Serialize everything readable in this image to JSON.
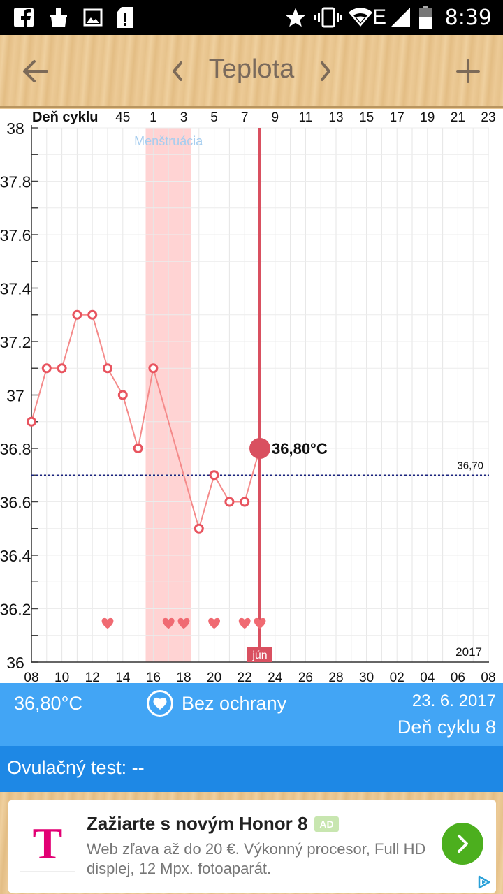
{
  "statusbar": {
    "time": "8:39",
    "icons": [
      "facebook-icon",
      "cleaner-icon",
      "gallery-icon",
      "sd-card-alert-icon",
      "star-icon",
      "vibrate-icon",
      "wifi-icon",
      "network-e-icon",
      "signal-icon",
      "battery-icon"
    ],
    "network_type": "E"
  },
  "header": {
    "title": "Teplota",
    "back_icon": "arrow-left-icon",
    "prev_icon": "chevron-left-icon",
    "next_icon": "chevron-right-icon",
    "add_icon": "plus-icon",
    "wood_color": "#e8c48d"
  },
  "chart_data": {
    "type": "line",
    "top_axis_label": "Deň cyklu",
    "cycle_day_ticks": [
      "45",
      "1",
      "3",
      "5",
      "7",
      "9",
      "11",
      "13",
      "15",
      "17",
      "19",
      "21",
      "23"
    ],
    "date_ticks": [
      "08",
      "10",
      "12",
      "14",
      "16",
      "18",
      "20",
      "22",
      "24",
      "26",
      "28",
      "30",
      "02",
      "04",
      "06",
      "08"
    ],
    "y_ticks": [
      "36",
      "36.2",
      "36.4",
      "36.6",
      "36.8",
      "37",
      "37.2",
      "37.4",
      "37.6",
      "37.8",
      "38"
    ],
    "ylim": [
      36,
      38
    ],
    "series": [
      {
        "x": [
          "08",
          "09",
          "10",
          "11",
          "12",
          "13",
          "14",
          "15",
          "16",
          "19",
          "20",
          "21",
          "22",
          "23"
        ],
        "values": [
          36.9,
          37.1,
          37.1,
          37.3,
          37.3,
          37.1,
          37.0,
          36.8,
          37.1,
          36.5,
          36.7,
          36.6,
          36.6,
          36.8
        ]
      }
    ],
    "menstruation": {
      "label": "Menštruácia",
      "from_date": "15.5",
      "to_date": "18.5"
    },
    "reference_line": {
      "value": 36.7,
      "label": "36,70"
    },
    "selected": {
      "date": "23",
      "value": 36.8,
      "label": "36,80°C",
      "month_label": "jún"
    },
    "hearts_at_dates": [
      "13",
      "17",
      "18",
      "20",
      "22",
      "23"
    ],
    "year_label": "2017",
    "line_color": "#f48a8a",
    "marker_color": "#e8545f",
    "selected_color": "#d95060",
    "menstruation_color": "#ffd3d3",
    "reference_color": "#1a237e"
  },
  "info": {
    "temperature": "36,80°C",
    "protection": "Bez ochrany",
    "date": "23. 6. 2017",
    "cycle_day": "Deň cyklu 8",
    "blue_light": "#42a5f5"
  },
  "ovulation": {
    "label": "Ovulačný test: --",
    "blue_dark": "#1e88e5"
  },
  "ad": {
    "title": "Zažiarte s novým Honor 8",
    "badge": "AD",
    "description": "Web zľava až do 20 €. Výkonný procesor, Full HD displej, 12 Mpx. fotoaparát.",
    "logo": "T",
    "go_icon": "chevron-right-icon",
    "choices_icon": "adchoices-icon",
    "brand_color": "#e20074"
  }
}
